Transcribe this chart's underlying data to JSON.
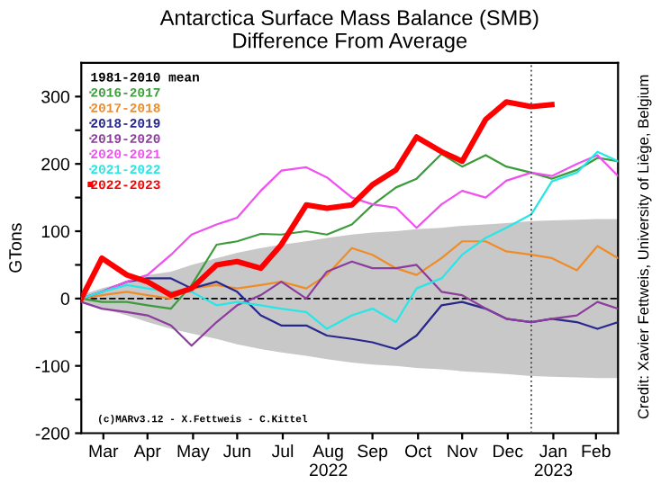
{
  "chart_data": {
    "type": "line",
    "title": "Antarctica Surface Mass Balance (SMB)\nDifference From Average",
    "ylabel": "GTons",
    "x": [
      "2022-03-01",
      "2022-03-15",
      "2022-04-01",
      "2022-04-15",
      "2022-05-01",
      "2022-05-15",
      "2022-06-01",
      "2022-06-15",
      "2022-07-01",
      "2022-07-15",
      "2022-08-01",
      "2022-08-15",
      "2022-09-01",
      "2022-09-15",
      "2022-10-01",
      "2022-10-15",
      "2022-11-01",
      "2022-11-15",
      "2022-12-01",
      "2022-12-15",
      "2023-01-01",
      "2023-01-15",
      "2023-02-01",
      "2023-02-15",
      "2023-03-01"
    ],
    "series": [
      {
        "name": "1981-2010 mean",
        "color": "#000000",
        "line_style": "dashed",
        "values": [
          0,
          0,
          0,
          0,
          0,
          0,
          0,
          0,
          0,
          0,
          0,
          0,
          0,
          0,
          0,
          0,
          0,
          0,
          0,
          0,
          0,
          0,
          0,
          0,
          0
        ],
        "lower": [
          -5,
          -15,
          -25,
          -35,
          -45,
          -52,
          -60,
          -68,
          -75,
          -80,
          -85,
          -90,
          -95,
          -98,
          -100,
          -103,
          -105,
          -108,
          -110,
          -112,
          -115,
          -116,
          -117,
          -118,
          -118
        ],
        "upper": [
          5,
          15,
          25,
          35,
          40,
          50,
          60,
          68,
          75,
          80,
          85,
          90,
          95,
          98,
          100,
          103,
          105,
          108,
          110,
          112,
          115,
          116,
          117,
          118,
          118
        ]
      },
      {
        "name": "2016-2017",
        "color": "#3c9c3c",
        "values": [
          0,
          -5,
          -5,
          -10,
          -15,
          20,
          80,
          85,
          96,
          95,
          100,
          95,
          110,
          139,
          165,
          178,
          215,
          196,
          213,
          196,
          187,
          178,
          191,
          209,
          204
        ]
      },
      {
        "name": "2017-2018",
        "color": "#f08c28",
        "values": [
          0,
          5,
          10,
          5,
          0,
          15,
          20,
          15,
          20,
          25,
          15,
          35,
          75,
          65,
          45,
          35,
          60,
          85,
          85,
          70,
          65,
          60,
          42,
          78,
          60
        ]
      },
      {
        "name": "2018-2019",
        "color": "#28288c",
        "values": [
          0,
          10,
          25,
          30,
          30,
          15,
          25,
          10,
          -25,
          -40,
          -40,
          -55,
          -60,
          -65,
          -75,
          -55,
          -10,
          -5,
          -15,
          -30,
          -35,
          -30,
          -35,
          -45,
          -35
        ]
      },
      {
        "name": "2019-2020",
        "color": "#8c3c9c",
        "values": [
          -5,
          -15,
          -20,
          -25,
          -40,
          -70,
          -35,
          -10,
          5,
          25,
          0,
          40,
          55,
          45,
          45,
          50,
          10,
          5,
          -15,
          -30,
          -35,
          -30,
          -25,
          -5,
          -15
        ]
      },
      {
        "name": "2020-2021",
        "color": "#f050f0",
        "values": [
          0,
          10,
          25,
          35,
          65,
          95,
          110,
          120,
          160,
          190,
          195,
          180,
          150,
          140,
          135,
          105,
          140,
          160,
          150,
          175,
          187,
          182,
          200,
          213,
          182
        ]
      },
      {
        "name": "2021-2022",
        "color": "#28e6e6",
        "values": [
          0,
          10,
          20,
          15,
          10,
          10,
          -10,
          -5,
          -10,
          -15,
          -20,
          -45,
          -25,
          -15,
          -35,
          15,
          30,
          65,
          90,
          105,
          125,
          174,
          187,
          218,
          204
        ]
      },
      {
        "name": "2022-2023",
        "color": "#ff0000",
        "values": [
          0,
          60,
          35,
          25,
          5,
          15,
          50,
          55,
          45,
          80,
          139,
          134,
          139,
          169,
          191,
          240,
          218,
          204,
          266,
          292,
          285,
          288,
          null,
          null,
          null
        ]
      }
    ],
    "xlim": [
      "2022-03-01",
      "2023-03-01"
    ],
    "xticks": [
      {
        "value": "2022-03-16",
        "label": "Mar"
      },
      {
        "value": "2022-04-15",
        "label": "Apr"
      },
      {
        "value": "2022-05-16",
        "label": "May"
      },
      {
        "value": "2022-06-15",
        "label": "Jun"
      },
      {
        "value": "2022-07-16",
        "label": "Jul"
      },
      {
        "value": "2022-08-16",
        "label": "Aug\n2022"
      },
      {
        "value": "2022-09-15",
        "label": "Sep"
      },
      {
        "value": "2022-10-16",
        "label": "Oct"
      },
      {
        "value": "2022-11-15",
        "label": "Nov"
      },
      {
        "value": "2022-12-16",
        "label": "Dec"
      },
      {
        "value": "2023-01-16",
        "label": "Jan\n2023"
      },
      {
        "value": "2023-02-14",
        "label": "Feb"
      }
    ],
    "ylim": [
      -200,
      350
    ],
    "yticks": [
      -200,
      {
        "value": -150,
        "label": null
      },
      -100,
      {
        "value": -50,
        "label": null
      },
      0,
      {
        "value": 50,
        "label": null
      },
      100,
      {
        "value": 150,
        "label": null
      },
      200,
      {
        "value": 250,
        "label": null
      },
      300
    ],
    "ref_lines": [
      {
        "axis": "x",
        "value": "2023-01-01",
        "label": null,
        "color": "#555555",
        "line_style": "dotted"
      }
    ],
    "annotations": [
      "(c)MARv3.12 - X.Fettweis - C.Kittel",
      "Credit: Xavier Fettweis, University of Liège, Belgium"
    ],
    "legend": "top left",
    "grid": false,
    "marker": "none"
  }
}
